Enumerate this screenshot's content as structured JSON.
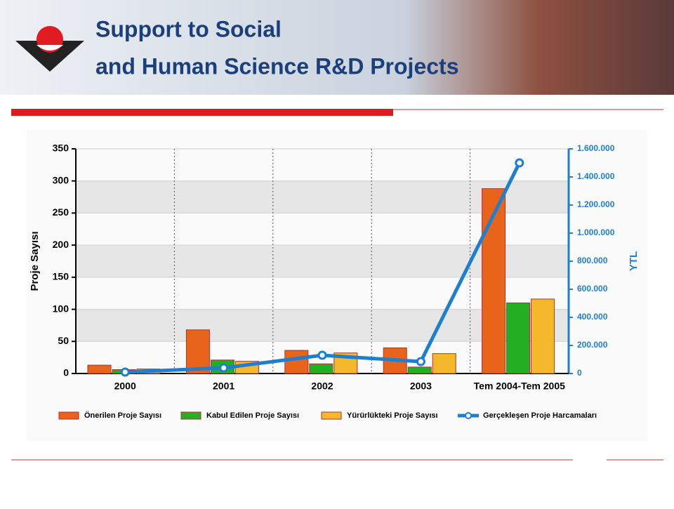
{
  "chart_data": {
    "type": "bar_line",
    "title": [
      "Support to Social",
      "and Human Science R&D Projects"
    ],
    "y_label": "Proje Sayısı",
    "y2_label": "YTL",
    "categories": [
      "2000",
      "2001",
      "2002",
      "2003",
      "Tem 2004-Tem 2005"
    ],
    "series": [
      {
        "name": "Önerilen Proje Sayısı",
        "color": "#e8641a",
        "values": [
          13,
          68,
          36,
          40,
          288
        ]
      },
      {
        "name": "Kabul Edilen Proje Sayısı",
        "color": "#22b022",
        "values": [
          6,
          21,
          15,
          10,
          110
        ]
      },
      {
        "name": "Yürürlükteki Proje Sayısı",
        "color": "#f5b82a",
        "values": [
          7,
          19,
          32,
          31,
          116
        ]
      },
      {
        "name": "Gerçekleşen Proje Harcamaları",
        "color": "#1e7fd0",
        "axis": "y2",
        "type": "line",
        "values": [
          10000,
          40000,
          130000,
          85000,
          1500000
        ]
      }
    ],
    "ylim": [
      0,
      350
    ],
    "yticks": [
      0,
      50,
      100,
      150,
      200,
      250,
      300,
      350
    ],
    "y2lim": [
      0,
      1600000
    ],
    "y2ticks": [
      {
        "value": 0,
        "label": "0"
      },
      {
        "value": 200000,
        "label": "200.000"
      },
      {
        "value": 400000,
        "label": "400.000"
      },
      {
        "value": 600000,
        "label": "600.000"
      },
      {
        "value": 800000,
        "label": "800.000"
      },
      {
        "value": 1000000,
        "label": "1.000.000"
      },
      {
        "value": 1200000,
        "label": "1.200.000"
      },
      {
        "value": 1400000,
        "label": "1.400.000"
      },
      {
        "value": 1600000,
        "label": "1.600.000"
      }
    ],
    "grid": true,
    "legend": "bottom"
  }
}
